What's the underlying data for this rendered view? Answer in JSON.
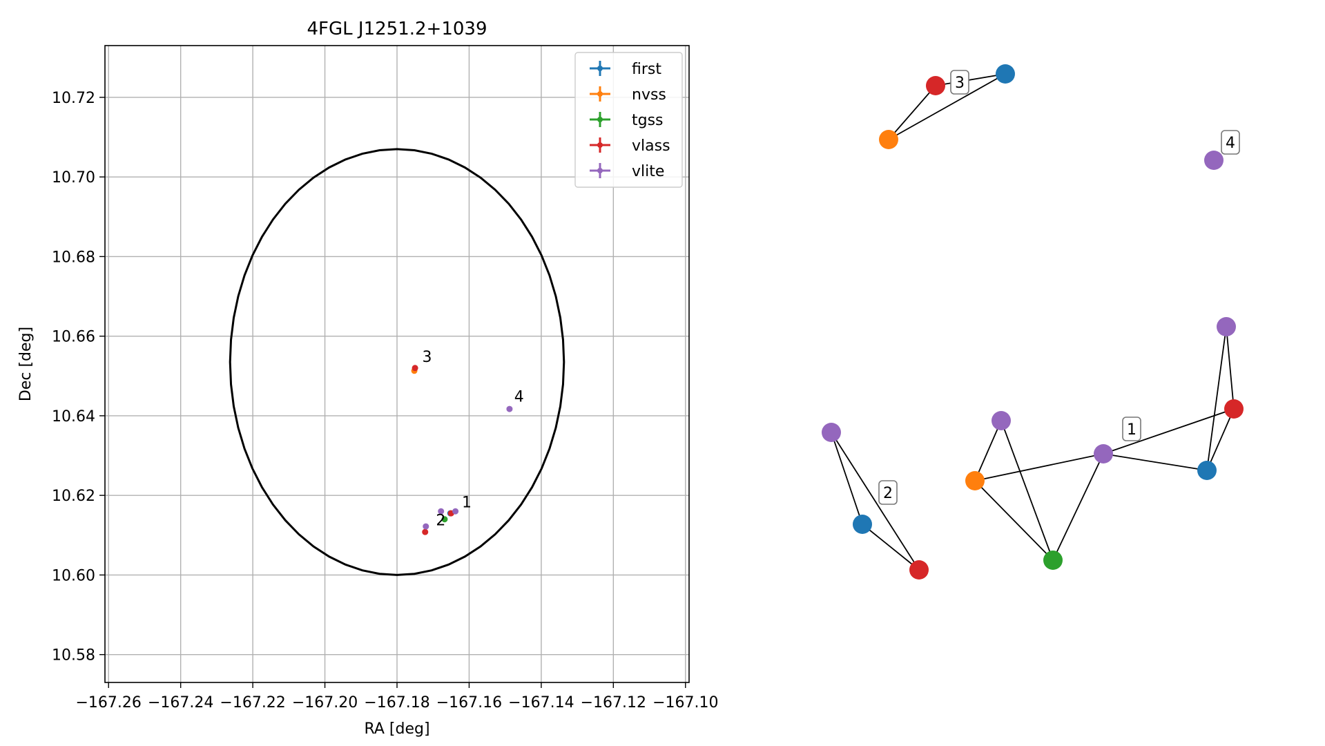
{
  "chart_data": [
    {
      "type": "scatter",
      "title": "4FGL J1251.2+1039",
      "xlabel": "RA [deg]",
      "ylabel": "Dec [deg]",
      "xlim": [
        -167.261,
        -167.099
      ],
      "ylim": [
        10.573,
        10.733
      ],
      "xticks": [
        -167.26,
        -167.24,
        -167.22,
        -167.2,
        -167.18,
        -167.16,
        -167.14,
        -167.12,
        -167.1
      ],
      "xtick_labels": [
        "−167.26",
        "−167.24",
        "−167.22",
        "−167.20",
        "−167.18",
        "−167.16",
        "−167.14",
        "−167.12",
        "−167.10"
      ],
      "yticks": [
        10.58,
        10.6,
        10.62,
        10.64,
        10.66,
        10.68,
        10.7,
        10.72
      ],
      "ytick_labels": [
        "10.58",
        "10.60",
        "10.62",
        "10.64",
        "10.66",
        "10.68",
        "10.70",
        "10.72"
      ],
      "grid": true,
      "legend_position": "top-right",
      "series": [
        {
          "name": "first",
          "color": "#1f77b4",
          "points": [
            {
              "x": -167.1652,
              "y": 10.6155
            }
          ]
        },
        {
          "name": "nvss",
          "color": "#ff7f0e",
          "points": [
            {
              "x": -167.1752,
              "y": 10.6513
            }
          ]
        },
        {
          "name": "tgss",
          "color": "#2ca02c",
          "points": [
            {
              "x": -167.1668,
              "y": 10.614
            }
          ]
        },
        {
          "name": "vlass",
          "color": "#d62728",
          "points": [
            {
              "x": -167.175,
              "y": 10.652
            },
            {
              "x": -167.1722,
              "y": 10.6108
            },
            {
              "x": -167.165,
              "y": 10.6155
            }
          ]
        },
        {
          "name": "vlite",
          "color": "#9467bd",
          "points": [
            {
              "x": -167.172,
              "y": 10.6122
            },
            {
              "x": -167.1678,
              "y": 10.616
            },
            {
              "x": -167.1638,
              "y": 10.616
            },
            {
              "x": -167.1488,
              "y": 10.6417
            }
          ]
        }
      ],
      "ellipse": {
        "center_x": -167.18,
        "center_y": 10.6535,
        "semi_x": 0.0463,
        "semi_y": 0.0535,
        "color": "#000000"
      },
      "point_labels": [
        {
          "text": "1",
          "x": -167.162,
          "y": 10.617
        },
        {
          "text": "2",
          "x": -167.1692,
          "y": 10.6125
        },
        {
          "text": "3",
          "x": -167.173,
          "y": 10.6535
        },
        {
          "text": "4",
          "x": -167.1475,
          "y": 10.6435
        }
      ]
    },
    {
      "type": "network",
      "groups": [
        {
          "label": "1",
          "nodes": [
            {
              "id": "1a",
              "color": "#9467bd"
            },
            {
              "id": "1b",
              "color": "#ff7f0e"
            },
            {
              "id": "1c",
              "color": "#2ca02c"
            },
            {
              "id": "1d",
              "color": "#9467bd"
            },
            {
              "id": "1e",
              "color": "#1f77b4"
            },
            {
              "id": "1f",
              "color": "#d62728"
            },
            {
              "id": "1g",
              "color": "#9467bd"
            }
          ],
          "edges": [
            [
              "1a",
              "1b"
            ],
            [
              "1a",
              "1c"
            ],
            [
              "1b",
              "1c"
            ],
            [
              "1b",
              "1d"
            ],
            [
              "1d",
              "1c"
            ],
            [
              "1d",
              "1e"
            ],
            [
              "1d",
              "1f"
            ],
            [
              "1e",
              "1f"
            ],
            [
              "1e",
              "1g"
            ],
            [
              "1f",
              "1g"
            ]
          ]
        },
        {
          "label": "2",
          "nodes": [
            {
              "id": "2a",
              "color": "#9467bd"
            },
            {
              "id": "2b",
              "color": "#1f77b4"
            },
            {
              "id": "2c",
              "color": "#d62728"
            }
          ],
          "edges": [
            [
              "2a",
              "2b"
            ],
            [
              "2a",
              "2c"
            ],
            [
              "2b",
              "2c"
            ]
          ]
        },
        {
          "label": "3",
          "nodes": [
            {
              "id": "3a",
              "color": "#d62728"
            },
            {
              "id": "3b",
              "color": "#1f77b4"
            },
            {
              "id": "3c",
              "color": "#ff7f0e"
            }
          ],
          "edges": [
            [
              "3a",
              "3b"
            ],
            [
              "3a",
              "3c"
            ],
            [
              "3b",
              "3c"
            ]
          ]
        },
        {
          "label": "4",
          "nodes": [
            {
              "id": "4a",
              "color": "#9467bd"
            }
          ],
          "edges": []
        }
      ]
    }
  ]
}
